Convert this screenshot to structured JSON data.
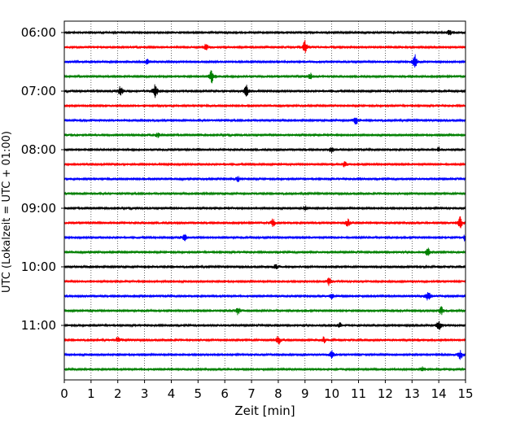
{
  "chart_data": {
    "type": "line",
    "title": "",
    "xlabel": "Zeit  [min]",
    "ylabel": "UTC (Lokalzeit = UTC + 01:00)",
    "xlim": [
      0,
      15
    ],
    "x_ticks": [
      0,
      1,
      2,
      3,
      4,
      5,
      6,
      7,
      8,
      9,
      10,
      11,
      12,
      13,
      14,
      15
    ],
    "y_tick_labels": [
      "06:00",
      "07:00",
      "08:00",
      "09:00",
      "10:00",
      "11:00"
    ],
    "y_tick_trace_index": [
      0,
      4,
      8,
      12,
      16,
      20
    ],
    "trace_minutes": 15,
    "trace_colors": [
      "#000000",
      "#ff0000",
      "#0000ff",
      "#008000"
    ],
    "grid": "vertical dotted",
    "series": [
      {
        "start": "06:00",
        "events": [
          {
            "x": 14.4,
            "amp": 0.3
          }
        ]
      },
      {
        "start": "06:15",
        "events": [
          {
            "x": 5.3,
            "amp": 0.4
          },
          {
            "x": 9.0,
            "amp": 0.9
          }
        ]
      },
      {
        "start": "06:30",
        "events": [
          {
            "x": 3.1,
            "amp": 0.3
          },
          {
            "x": 13.1,
            "amp": 0.9
          }
        ]
      },
      {
        "start": "06:45",
        "events": [
          {
            "x": 5.5,
            "amp": 0.9
          },
          {
            "x": 9.2,
            "amp": 0.4
          }
        ]
      },
      {
        "start": "07:00",
        "events": [
          {
            "x": 2.1,
            "amp": 0.7
          },
          {
            "x": 3.4,
            "amp": 1.0
          },
          {
            "x": 6.8,
            "amp": 0.8
          }
        ]
      },
      {
        "start": "07:15",
        "events": []
      },
      {
        "start": "07:30",
        "events": [
          {
            "x": 10.9,
            "amp": 0.5
          }
        ]
      },
      {
        "start": "07:45",
        "events": [
          {
            "x": 3.5,
            "amp": 0.3
          }
        ]
      },
      {
        "start": "08:00",
        "events": [
          {
            "x": 10.0,
            "amp": 0.4
          },
          {
            "x": 14.0,
            "amp": 0.3
          }
        ]
      },
      {
        "start": "08:15",
        "events": [
          {
            "x": 10.5,
            "amp": 0.4
          }
        ]
      },
      {
        "start": "08:30",
        "events": [
          {
            "x": 6.5,
            "amp": 0.3
          }
        ]
      },
      {
        "start": "08:45",
        "events": []
      },
      {
        "start": "09:00",
        "events": [
          {
            "x": 9.0,
            "amp": 0.3
          }
        ]
      },
      {
        "start": "09:15",
        "events": [
          {
            "x": 7.8,
            "amp": 0.5
          },
          {
            "x": 10.6,
            "amp": 0.5
          },
          {
            "x": 14.8,
            "amp": 0.8
          }
        ]
      },
      {
        "start": "09:30",
        "events": [
          {
            "x": 4.5,
            "amp": 0.4
          },
          {
            "x": 15.0,
            "amp": 0.5
          }
        ]
      },
      {
        "start": "09:45",
        "events": [
          {
            "x": 13.6,
            "amp": 0.6
          }
        ]
      },
      {
        "start": "10:00",
        "events": [
          {
            "x": 7.9,
            "amp": 0.3
          }
        ]
      },
      {
        "start": "10:15",
        "events": [
          {
            "x": 9.9,
            "amp": 0.5
          }
        ]
      },
      {
        "start": "10:30",
        "events": [
          {
            "x": 10.0,
            "amp": 0.3
          },
          {
            "x": 13.6,
            "amp": 0.7
          }
        ]
      },
      {
        "start": "10:45",
        "events": [
          {
            "x": 6.5,
            "amp": 0.5
          },
          {
            "x": 14.1,
            "amp": 0.5
          }
        ]
      },
      {
        "start": "11:00",
        "events": [
          {
            "x": 10.3,
            "amp": 0.3
          },
          {
            "x": 14.0,
            "amp": 0.8
          }
        ]
      },
      {
        "start": "11:15",
        "events": [
          {
            "x": 2.0,
            "amp": 0.4
          },
          {
            "x": 8.0,
            "amp": 0.6
          },
          {
            "x": 9.7,
            "amp": 0.4
          }
        ]
      },
      {
        "start": "11:30",
        "events": [
          {
            "x": 10.0,
            "amp": 0.5
          },
          {
            "x": 14.8,
            "amp": 0.6
          }
        ]
      },
      {
        "start": "11:45",
        "events": [
          {
            "x": 13.4,
            "amp": 0.3
          }
        ]
      }
    ]
  }
}
